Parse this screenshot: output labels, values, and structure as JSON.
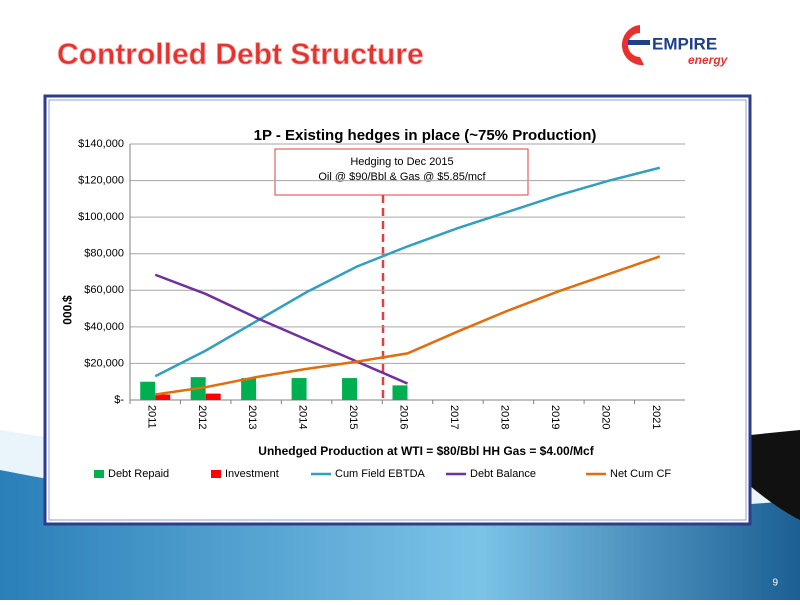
{
  "slide_title": "Controlled Debt Structure",
  "logo": {
    "name": "EMPIRE",
    "tagline": "energy"
  },
  "page_number": "9",
  "chart_data": {
    "type": "combo",
    "title": "1P - Existing hedges in place (~75% Production)",
    "annotation": [
      "Hedging to Dec 2015",
      "Oil @ $90/Bbl & Gas @ $5.85/mcf"
    ],
    "x_label": "Unhedged Production at WTI = $80/Bbl   HH Gas = $4.00/Mcf",
    "y_label": "$'000",
    "categories": [
      "2011",
      "2012",
      "2013",
      "2014",
      "2015",
      "2016",
      "2017",
      "2018",
      "2019",
      "2020",
      "2021"
    ],
    "series": [
      {
        "name": "Debt Repaid",
        "type": "bar",
        "color": "#00b050",
        "values": [
          10000,
          12500,
          12000,
          12000,
          12000,
          8000,
          null,
          null,
          null,
          null,
          null
        ]
      },
      {
        "name": "Investment",
        "type": "bar",
        "color": "#ff0000",
        "values": [
          3000,
          3500,
          null,
          null,
          null,
          null,
          null,
          null,
          null,
          null,
          null
        ]
      },
      {
        "name": "Cum Field EBTDA",
        "type": "line",
        "color": "#31a0c0",
        "values": [
          13000,
          27000,
          43000,
          59000,
          73000,
          84000,
          94000,
          103000,
          112000,
          120000,
          127000
        ]
      },
      {
        "name": "Debt Balance",
        "type": "line",
        "color": "#7030a0",
        "values": [
          68500,
          58000,
          45000,
          33000,
          21000,
          9000,
          null,
          null,
          null,
          null,
          null
        ]
      },
      {
        "name": "Net Cum CF",
        "type": "line",
        "color": "#e46c0a",
        "values": [
          3000,
          7000,
          12500,
          17000,
          21000,
          25500,
          37500,
          49000,
          59500,
          69000,
          78500
        ]
      }
    ],
    "ylim": [
      0,
      140000
    ],
    "yticks": [
      {
        "value": 0,
        "label": "$-"
      },
      {
        "value": 20000,
        "label": "$20,000"
      },
      {
        "value": 40000,
        "label": "$40,000"
      },
      {
        "value": 60000,
        "label": "$60,000"
      },
      {
        "value": 80000,
        "label": "$80,000"
      },
      {
        "value": 100000,
        "label": "$100,000"
      },
      {
        "value": 120000,
        "label": "$120,000"
      },
      {
        "value": 140000,
        "label": "$140,000"
      }
    ],
    "grid": true,
    "legend": "bottom"
  }
}
